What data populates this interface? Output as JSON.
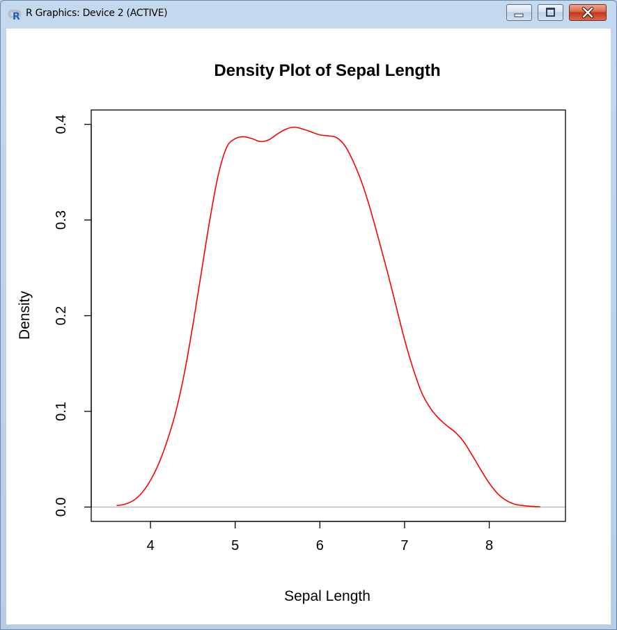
{
  "window": {
    "title": "R Graphics: Device 2 (ACTIVE)",
    "app_icon": "r-logo-icon",
    "controls": [
      "minimize-icon",
      "maximize-icon",
      "close-icon"
    ]
  },
  "chart_data": {
    "type": "line",
    "title": "Density Plot of Sepal Length",
    "xlabel": "Sepal Length",
    "ylabel": "Density",
    "xlim": [
      3.3,
      8.9
    ],
    "ylim": [
      -0.015,
      0.415
    ],
    "x_ticks": [
      4,
      5,
      6,
      7,
      8
    ],
    "x_tick_labels": [
      "4",
      "5",
      "6",
      "7",
      "8"
    ],
    "y_ticks": [
      0,
      0.1,
      0.2,
      0.3,
      0.4
    ],
    "y_tick_labels": [
      "0.0",
      "0.1",
      "0.2",
      "0.3",
      "0.4"
    ],
    "grid": false,
    "baseline": 0,
    "line_color": "#ff0000",
    "baseline_color": "#bebebe",
    "series": [
      {
        "x": [
          3.6,
          3.7,
          3.8,
          3.9,
          4.0,
          4.1,
          4.2,
          4.3,
          4.4,
          4.5,
          4.6,
          4.7,
          4.8,
          4.9,
          5.0,
          5.1,
          5.2,
          5.3,
          5.4,
          5.5,
          5.6,
          5.7,
          5.8,
          5.9,
          6.0,
          6.1,
          6.2,
          6.3,
          6.4,
          6.5,
          6.6,
          6.7,
          6.8,
          6.9,
          7.0,
          7.1,
          7.2,
          7.3,
          7.4,
          7.5,
          7.6,
          7.7,
          7.8,
          7.9,
          8.0,
          8.1,
          8.2,
          8.3,
          8.4,
          8.5,
          8.6
        ],
        "values": [
          0.0015,
          0.003,
          0.007,
          0.015,
          0.028,
          0.046,
          0.07,
          0.1,
          0.14,
          0.19,
          0.245,
          0.3,
          0.347,
          0.376,
          0.385,
          0.387,
          0.385,
          0.382,
          0.384,
          0.39,
          0.395,
          0.397,
          0.395,
          0.392,
          0.389,
          0.388,
          0.386,
          0.377,
          0.36,
          0.338,
          0.31,
          0.278,
          0.245,
          0.21,
          0.175,
          0.145,
          0.12,
          0.104,
          0.093,
          0.085,
          0.078,
          0.068,
          0.054,
          0.039,
          0.025,
          0.014,
          0.007,
          0.003,
          0.0015,
          0.0007,
          0.0003
        ]
      }
    ]
  }
}
